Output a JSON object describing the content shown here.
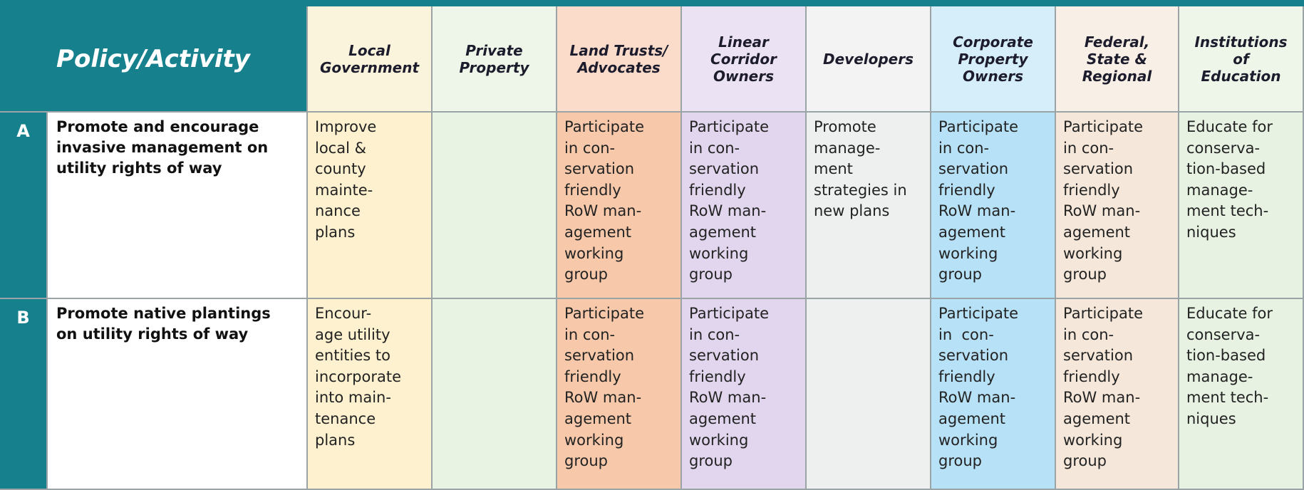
{
  "header": {
    "title": "Policy/Activity",
    "columns": [
      [
        "Local",
        "Government"
      ],
      [
        "Private",
        "Property"
      ],
      [
        "Land Trusts/",
        "Advocates"
      ],
      [
        "Linear",
        "Corridor",
        "Owners"
      ],
      [
        "Developers"
      ],
      [
        "Corporate",
        "Property",
        "Owners"
      ],
      [
        "Federal,",
        "State &",
        "Regional"
      ],
      [
        "Institutions",
        "of",
        "Education"
      ]
    ]
  },
  "rows": [
    {
      "letter": "A",
      "policy": [
        "Promote and encourage",
        "invasive management on",
        "utility rights of way"
      ],
      "cells": [
        [
          "Improve",
          "local &",
          "county",
          "mainte-",
          "nance",
          "plans"
        ],
        [],
        [
          "Participate",
          "in con-",
          "servation",
          "friendly",
          "RoW man-",
          "agement",
          "working",
          "group"
        ],
        [
          "Participate",
          "in con-",
          "servation",
          "friendly",
          "RoW man-",
          "agement",
          "working",
          "group"
        ],
        [
          "Promote",
          "manage-",
          "ment",
          "strategies in",
          "new plans"
        ],
        [
          "Participate",
          "in con-",
          "servation",
          "friendly",
          "RoW man-",
          "agement",
          "working",
          "group"
        ],
        [
          "Participate",
          "in con-",
          "servation",
          "friendly",
          "RoW man-",
          "agement",
          "working",
          "group"
        ],
        [
          "Educate for",
          "conserva-",
          "tion-based",
          "manage-",
          "ment tech-",
          "niques"
        ]
      ]
    },
    {
      "letter": "B",
      "policy": [
        "Promote native plantings",
        "on utility rights of way"
      ],
      "cells": [
        [
          "Encour-",
          "age utility",
          "entities to",
          "incorporate",
          "into main-",
          "tenance",
          "plans"
        ],
        [],
        [
          "Participate",
          "in con-",
          "servation",
          "friendly",
          "RoW man-",
          "agement",
          "working",
          "group"
        ],
        [
          "Participate",
          "in con-",
          "servation",
          "friendly",
          "RoW man-",
          "agement",
          "working",
          "group"
        ],
        [],
        [
          "Participate",
          "in  con-",
          "servation",
          "friendly",
          "RoW man-",
          "agement",
          "working",
          "group"
        ],
        [
          "Participate",
          "in con-",
          "servation",
          "friendly",
          "RoW man-",
          "agement",
          "working",
          "group"
        ],
        [
          "Educate for",
          "conserva-",
          "tion-based",
          "manage-",
          "ment tech-",
          "niques"
        ]
      ]
    }
  ]
}
